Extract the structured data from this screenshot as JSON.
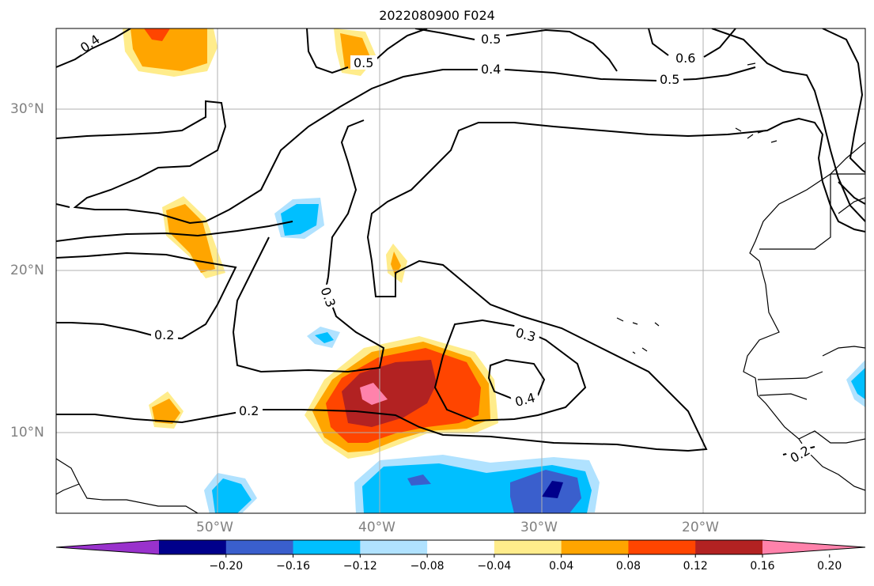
{
  "title": "2022080900 F024",
  "lat_labels": [
    "30°N",
    "20°N",
    "10°N"
  ],
  "lon_labels": [
    "50°W",
    "40°W",
    "30°W",
    "20°W"
  ],
  "contour_labels": [
    "0.4",
    "0.5",
    "0.5",
    "0.6",
    "0.4",
    "0.5",
    "0.3",
    "0.2",
    "0.2",
    "0.3",
    "0.4",
    "0.2"
  ],
  "colorbar": {
    "ticks": [
      "−0.20",
      "−0.16",
      "−0.12",
      "−0.08",
      "−0.04",
      "0.04",
      "0.08",
      "0.12",
      "0.16",
      "0.20"
    ],
    "colors": [
      "#9932cc",
      "#00008b",
      "#3a5fcd",
      "#00bfff",
      "#b0e2ff",
      "#ffffff",
      "#ffec8b",
      "#ffa500",
      "#ff4500",
      "#b22222",
      "#ff82ab"
    ]
  }
}
